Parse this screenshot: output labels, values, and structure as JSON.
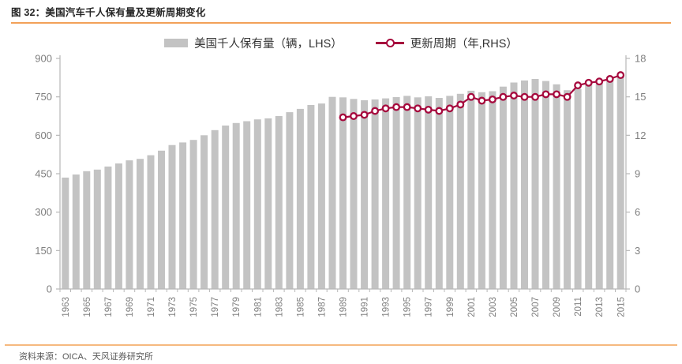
{
  "header": {
    "title": "图 32：美国汽车千人保有量及更新周期变化"
  },
  "legend": {
    "bar_label": "美国千人保有量（辆，LHS）",
    "line_label": "更新周期（年,RHS）"
  },
  "footer": {
    "source": "资料来源：OICA、天风证券研究所"
  },
  "colors": {
    "bar": "#c3c3c3",
    "line": "#a6093d",
    "axis": "#b8b8b8",
    "tick_text": "#7f7f7f",
    "top_divider": "#f2a159",
    "bottom_divider": "#f6b97f"
  },
  "chart_data": {
    "type": "bar+line",
    "title": "图 32：美国汽车千人保有量及更新周期变化",
    "xlabel": "",
    "ylabel_left": "美国千人保有量（辆，LHS）",
    "ylabel_right": "更新周期（年,RHS）",
    "legend_position": "top",
    "grid": false,
    "years": [
      1963,
      1964,
      1965,
      1966,
      1967,
      1968,
      1969,
      1970,
      1971,
      1972,
      1973,
      1974,
      1975,
      1976,
      1977,
      1978,
      1979,
      1980,
      1981,
      1982,
      1983,
      1984,
      1985,
      1986,
      1987,
      1988,
      1989,
      1990,
      1991,
      1992,
      1993,
      1994,
      1995,
      1996,
      1997,
      1998,
      1999,
      2000,
      2001,
      2002,
      2003,
      2004,
      2005,
      2006,
      2007,
      2008,
      2009,
      2010,
      2011,
      2012,
      2013,
      2014,
      2015
    ],
    "x_tick_labels": [
      "1963",
      "1965",
      "1967",
      "1969",
      "1971",
      "1973",
      "1975",
      "1977",
      "1979",
      "1981",
      "1983",
      "1985",
      "1987",
      "1989",
      "1991",
      "1993",
      "1995",
      "1997",
      "1999",
      "2001",
      "2003",
      "2005",
      "2007",
      "2009",
      "2011",
      "2013",
      "2015"
    ],
    "left_axis": {
      "ticks": [
        0,
        150,
        300,
        450,
        600,
        750,
        900
      ],
      "range": [
        0,
        900
      ]
    },
    "right_axis": {
      "ticks": [
        0,
        3,
        6,
        9,
        12,
        15,
        18
      ],
      "range": [
        0,
        18
      ]
    },
    "series": [
      {
        "name": "美国千人保有量（辆，LHS）",
        "type": "bar",
        "axis": "left",
        "values": [
          435,
          447,
          460,
          466,
          478,
          490,
          502,
          508,
          522,
          540,
          562,
          572,
          582,
          600,
          620,
          638,
          648,
          655,
          662,
          666,
          675,
          690,
          703,
          718,
          724,
          750,
          748,
          742,
          737,
          740,
          744,
          749,
          754,
          748,
          752,
          746,
          754,
          762,
          774,
          768,
          772,
          790,
          806,
          814,
          820,
          812,
          799,
          776,
          781,
          800,
          806,
          818,
          830
        ]
      },
      {
        "name": "更新周期（年,RHS）",
        "type": "line",
        "axis": "right",
        "years": [
          1989,
          1990,
          1991,
          1992,
          1993,
          1994,
          1995,
          1996,
          1997,
          1998,
          1999,
          2000,
          2001,
          2002,
          2003,
          2004,
          2005,
          2006,
          2007,
          2008,
          2009,
          2010,
          2011,
          2012,
          2013,
          2014,
          2015
        ],
        "values": [
          13.4,
          13.5,
          13.6,
          13.9,
          14.1,
          14.2,
          14.2,
          14.1,
          14.0,
          13.9,
          14.1,
          14.4,
          15.0,
          14.7,
          14.8,
          15.0,
          15.1,
          15.0,
          15.0,
          15.2,
          15.2,
          15.0,
          15.9,
          16.1,
          16.2,
          16.4,
          16.7
        ]
      }
    ]
  }
}
